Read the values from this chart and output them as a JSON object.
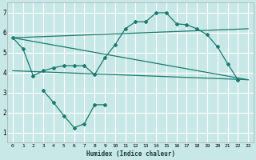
{
  "xlabel": "Humidex (Indice chaleur)",
  "bg_color": "#c8e8e8",
  "grid_color": "#ffffff",
  "line_color": "#1a7a6e",
  "xlim": [
    -0.5,
    23.5
  ],
  "ylim": [
    0.5,
    7.5
  ],
  "xticks": [
    0,
    1,
    2,
    3,
    4,
    5,
    6,
    7,
    8,
    9,
    10,
    11,
    12,
    13,
    14,
    15,
    16,
    17,
    18,
    19,
    20,
    21,
    22,
    23
  ],
  "yticks": [
    1,
    2,
    3,
    4,
    5,
    6,
    7
  ],
  "line1_x": [
    0,
    1,
    2,
    3,
    4,
    5,
    6,
    7,
    8,
    9,
    10,
    11,
    12,
    13,
    14,
    15,
    16,
    17,
    18,
    19,
    20,
    21,
    22
  ],
  "line1_y": [
    5.75,
    5.2,
    3.85,
    4.1,
    4.25,
    4.35,
    4.35,
    4.35,
    3.9,
    4.75,
    5.4,
    6.2,
    6.55,
    6.55,
    7.0,
    7.0,
    6.45,
    6.4,
    6.2,
    5.9,
    5.3,
    4.45,
    3.65
  ],
  "line2_x": [
    3,
    4,
    5,
    6,
    7,
    8,
    9
  ],
  "line2_y": [
    3.1,
    2.5,
    1.85,
    1.25,
    1.45,
    2.4,
    2.4
  ],
  "line3_x": [
    0,
    23
  ],
  "line3_y": [
    5.75,
    6.2
  ],
  "line4_x": [
    0,
    23
  ],
  "line4_y": [
    5.75,
    3.65
  ],
  "line5_x": [
    0,
    23
  ],
  "line5_y": [
    4.1,
    3.65
  ]
}
